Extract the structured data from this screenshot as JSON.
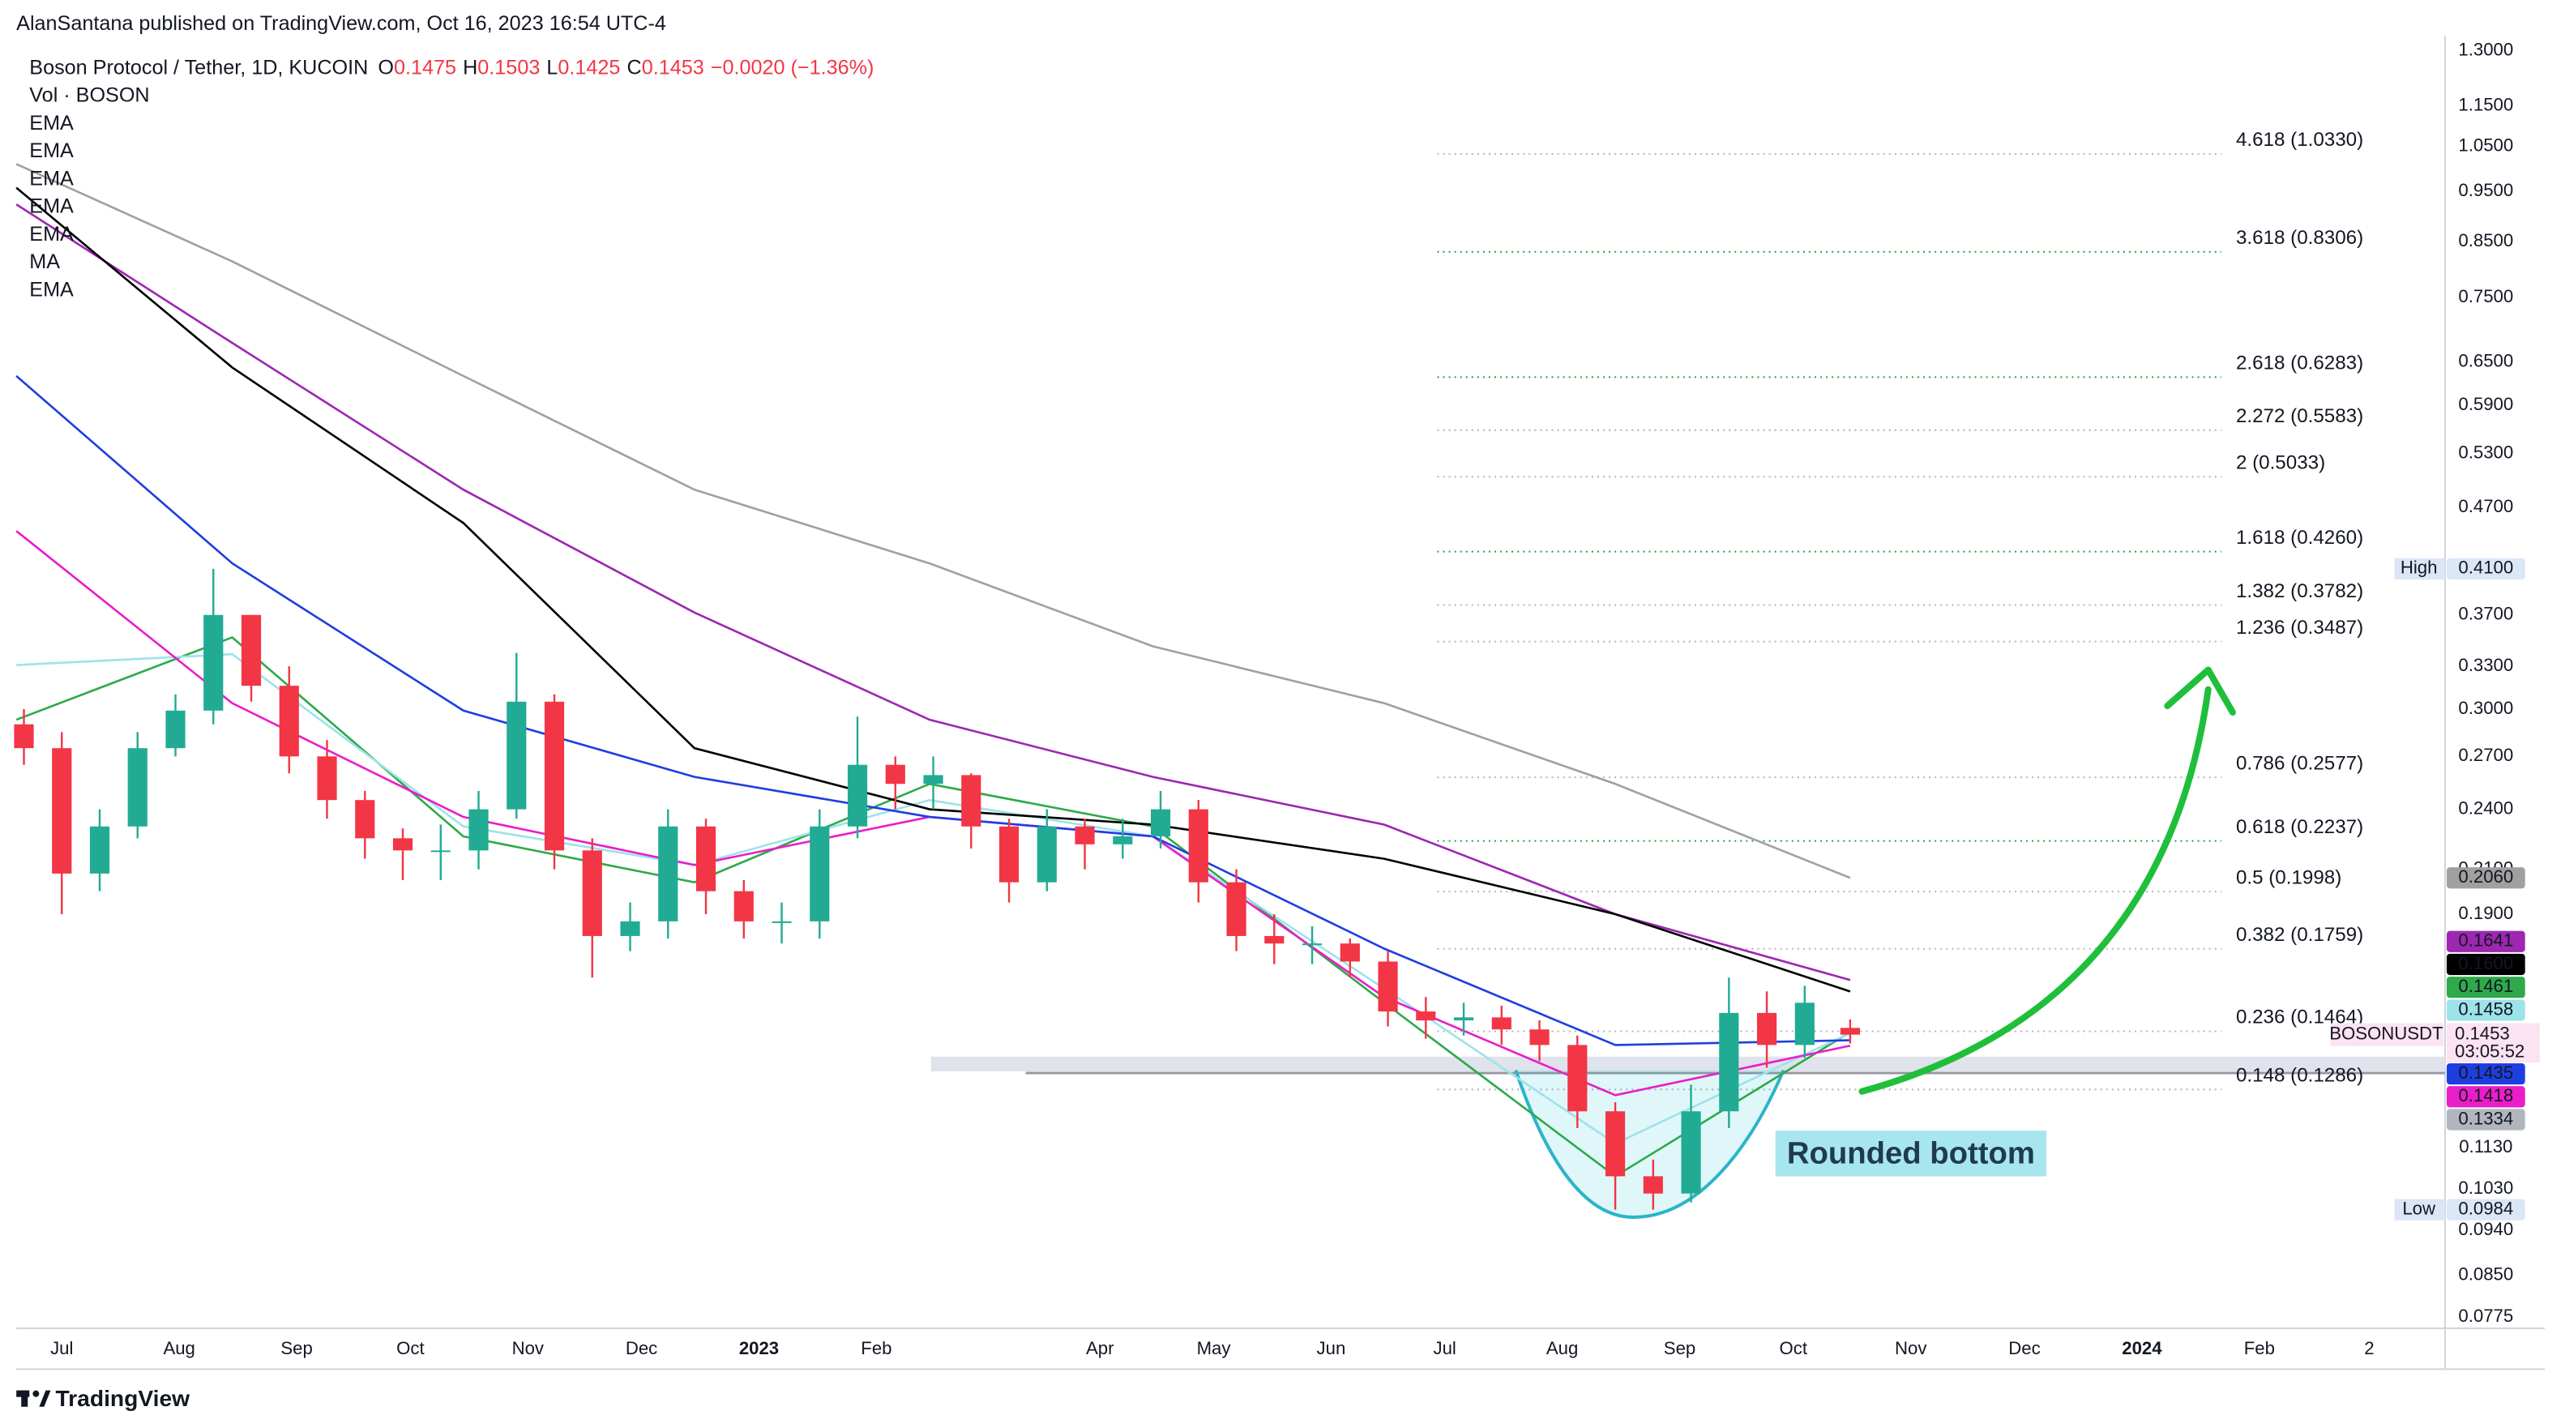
{
  "header": {
    "publisher": "AlanSantana published on TradingView.com, Oct 16, 2023 16:54 UTC-4"
  },
  "chart_data": {
    "type": "candlestick",
    "symbol": "Boson Protocol / Tether, 1D, KUCOIN",
    "ohlc": [
      {
        "key": "O",
        "value": "0.1475"
      },
      {
        "key": "H",
        "value": "0.1503"
      },
      {
        "key": "L",
        "value": "0.1425"
      },
      {
        "key": "C",
        "value": "0.1453"
      }
    ],
    "change": "−0.0020 (−1.36%)",
    "volume_label": "Vol · BOSON",
    "up_color": "#22ab94",
    "down_color": "#f23645",
    "log_scale": true,
    "ylim": [
      0.0775,
      1.3
    ],
    "yticks": [
      {
        "value": 1.3,
        "label": "1.3000"
      },
      {
        "value": 1.15,
        "label": "1.1500"
      },
      {
        "value": 1.05,
        "label": "1.0500"
      },
      {
        "value": 0.95,
        "label": "0.9500"
      },
      {
        "value": 0.85,
        "label": "0.8500"
      },
      {
        "value": 0.75,
        "label": "0.7500"
      },
      {
        "value": 0.65,
        "label": "0.6500"
      },
      {
        "value": 0.59,
        "label": "0.5900"
      },
      {
        "value": 0.53,
        "label": "0.5300"
      },
      {
        "value": 0.47,
        "label": "0.4700"
      },
      {
        "value": 0.37,
        "label": "0.3700"
      },
      {
        "value": 0.33,
        "label": "0.3300"
      },
      {
        "value": 0.3,
        "label": "0.3000"
      },
      {
        "value": 0.27,
        "label": "0.2700"
      },
      {
        "value": 0.24,
        "label": "0.2400"
      },
      {
        "value": 0.21,
        "label": "0.2100"
      },
      {
        "value": 0.19,
        "label": "0.1900"
      },
      {
        "value": 0.113,
        "label": "0.1130"
      },
      {
        "value": 0.103,
        "label": "0.1030"
      },
      {
        "value": 0.094,
        "label": "0.0940"
      },
      {
        "value": 0.085,
        "label": "0.0850"
      },
      {
        "value": 0.0775,
        "label": "0.0775"
      }
    ],
    "xlim": [
      "2022-06-19",
      "2024-03-21"
    ],
    "xticks": [
      {
        "value": "2022-07-01",
        "label": "Jul"
      },
      {
        "value": "2022-08-01",
        "label": "Aug"
      },
      {
        "value": "2022-09-01",
        "label": "Sep"
      },
      {
        "value": "2022-10-01",
        "label": "Oct"
      },
      {
        "value": "2022-11-01",
        "label": "Nov"
      },
      {
        "value": "2022-12-01",
        "label": "Dec"
      },
      {
        "value": "2023-01-01",
        "label": "2023"
      },
      {
        "value": "2023-02-01",
        "label": "Feb"
      },
      {
        "value": "2023-04-01",
        "label": "Apr"
      },
      {
        "value": "2023-05-01",
        "label": "May"
      },
      {
        "value": "2023-06-01",
        "label": "Jun"
      },
      {
        "value": "2023-07-01",
        "label": "Jul"
      },
      {
        "value": "2023-08-01",
        "label": "Aug"
      },
      {
        "value": "2023-09-01",
        "label": "Sep"
      },
      {
        "value": "2023-10-01",
        "label": "Oct"
      },
      {
        "value": "2023-11-01",
        "label": "Nov"
      },
      {
        "value": "2023-12-01",
        "label": "Dec"
      },
      {
        "value": "2024-01-01",
        "label": "2024"
      },
      {
        "value": "2024-02-01",
        "label": "Feb"
      },
      {
        "value": "2024-03-01",
        "label": "2"
      }
    ],
    "x": [
      "2022-06-21",
      "2022-07-01",
      "2022-07-11",
      "2022-07-21",
      "2022-07-31",
      "2022-08-10",
      "2022-08-20",
      "2022-08-30",
      "2022-09-09",
      "2022-09-19",
      "2022-09-29",
      "2022-10-09",
      "2022-10-19",
      "2022-10-29",
      "2022-11-08",
      "2022-11-18",
      "2022-11-28",
      "2022-12-08",
      "2022-12-18",
      "2022-12-28",
      "2023-01-07",
      "2023-01-17",
      "2023-01-27",
      "2023-02-06",
      "2023-02-16",
      "2023-02-26",
      "2023-03-08",
      "2023-03-18",
      "2023-03-28",
      "2023-04-07",
      "2023-04-17",
      "2023-04-27",
      "2023-05-07",
      "2023-05-17",
      "2023-05-27",
      "2023-06-06",
      "2023-06-16",
      "2023-06-26",
      "2023-07-06",
      "2023-07-16",
      "2023-07-26",
      "2023-08-05",
      "2023-08-15",
      "2023-08-25",
      "2023-09-04",
      "2023-09-14",
      "2023-09-24",
      "2023-10-04",
      "2023-10-16"
    ],
    "open": [
      0.29,
      0.275,
      0.208,
      0.231,
      0.275,
      0.299,
      0.37,
      0.316,
      0.27,
      0.245,
      0.225,
      0.219,
      0.219,
      0.24,
      0.305,
      0.219,
      0.181,
      0.187,
      0.231,
      0.2,
      0.187,
      0.187,
      0.231,
      0.265,
      0.254,
      0.259,
      0.231,
      0.204,
      0.231,
      0.222,
      0.226,
      0.24,
      0.204,
      0.181,
      0.178,
      0.178,
      0.171,
      0.153,
      0.15,
      0.151,
      0.147,
      0.142,
      0.1225,
      0.106,
      0.102,
      0.1225,
      0.1525,
      0.142,
      0.1475
    ],
    "high": [
      0.3,
      0.285,
      0.24,
      0.285,
      0.31,
      0.41,
      0.37,
      0.33,
      0.28,
      0.25,
      0.23,
      0.232,
      0.25,
      0.34,
      0.31,
      0.225,
      0.195,
      0.24,
      0.235,
      0.205,
      0.195,
      0.24,
      0.295,
      0.27,
      0.27,
      0.26,
      0.235,
      0.24,
      0.235,
      0.235,
      0.25,
      0.245,
      0.21,
      0.19,
      0.185,
      0.18,
      0.175,
      0.158,
      0.156,
      0.155,
      0.15,
      0.145,
      0.125,
      0.11,
      0.13,
      0.165,
      0.16,
      0.162,
      0.1503
    ],
    "low": [
      0.265,
      0.19,
      0.2,
      0.225,
      0.27,
      0.29,
      0.305,
      0.26,
      0.235,
      0.215,
      0.205,
      0.205,
      0.21,
      0.235,
      0.21,
      0.165,
      0.175,
      0.18,
      0.19,
      0.18,
      0.178,
      0.18,
      0.225,
      0.24,
      0.24,
      0.22,
      0.195,
      0.2,
      0.21,
      0.215,
      0.22,
      0.195,
      0.175,
      0.17,
      0.17,
      0.165,
      0.148,
      0.144,
      0.145,
      0.142,
      0.137,
      0.118,
      0.0984,
      0.0984,
      0.1,
      0.118,
      0.135,
      0.138,
      0.1425
    ],
    "close": [
      0.275,
      0.208,
      0.231,
      0.275,
      0.299,
      0.37,
      0.316,
      0.27,
      0.245,
      0.225,
      0.219,
      0.219,
      0.24,
      0.305,
      0.219,
      0.181,
      0.187,
      0.231,
      0.2,
      0.187,
      0.187,
      0.231,
      0.265,
      0.254,
      0.259,
      0.231,
      0.204,
      0.231,
      0.222,
      0.226,
      0.24,
      0.204,
      0.181,
      0.178,
      0.178,
      0.171,
      0.153,
      0.15,
      0.151,
      0.147,
      0.142,
      0.1225,
      0.106,
      0.102,
      0.1225,
      0.1525,
      0.142,
      0.156,
      0.1453
    ],
    "indicator_x": [
      "2022-06-19",
      "2022-08-15",
      "2022-10-15",
      "2022-12-15",
      "2023-02-15",
      "2023-04-15",
      "2023-06-15",
      "2023-08-15",
      "2023-10-16"
    ],
    "indicators": [
      {
        "name": "EMA",
        "color": "#2eaa4a",
        "values": [
          0.293,
          0.352,
          0.226,
          0.204,
          0.254,
          0.231,
          0.156,
          0.106,
          0.1461
        ],
        "last_label": "0.1461"
      },
      {
        "name": "EMA",
        "color": "#9de3ea",
        "values": [
          0.331,
          0.339,
          0.231,
          0.212,
          0.245,
          0.226,
          0.161,
          0.114,
          0.1458
        ],
        "last_label": "0.1458"
      },
      {
        "name": "EMA",
        "color": "#e91ec8",
        "values": [
          0.446,
          0.304,
          0.236,
          0.212,
          0.236,
          0.226,
          0.158,
          0.127,
          0.1418
        ],
        "last_label": "0.1418"
      },
      {
        "name": "EMA",
        "color": "#1e3fe0",
        "values": [
          0.63,
          0.415,
          0.299,
          0.258,
          0.236,
          0.226,
          0.176,
          0.142,
          0.1435
        ],
        "last_label": "0.1435"
      },
      {
        "name": "EMA",
        "color": "#9c27b0",
        "values": [
          0.923,
          0.678,
          0.489,
          0.372,
          0.293,
          0.258,
          0.232,
          0.19,
          0.1641
        ],
        "last_label": "0.1641"
      },
      {
        "name": "MA",
        "color": "#000000",
        "values": [
          0.958,
          0.642,
          0.454,
          0.275,
          0.24,
          0.232,
          0.215,
          0.19,
          0.16
        ],
        "last_label": "0.1600"
      },
      {
        "name": "EMA",
        "color": "#a0a0a0",
        "values": [
          1.01,
          0.813,
          0.63,
          0.489,
          0.415,
          0.345,
          0.304,
          0.254,
          0.206
        ],
        "last_label": "0.2060"
      }
    ],
    "symbol_label": {
      "name": "BOSONUSDT",
      "value": 0.1453,
      "label": "0.1453",
      "countdown": "03:05:52"
    },
    "zone": {
      "value": 0.1334,
      "label": "0.1334"
    },
    "extremes": [
      {
        "text": "High",
        "value": 0.41,
        "label": "0.4100"
      },
      {
        "text": "Low",
        "value": 0.0984,
        "label": "0.0984"
      }
    ],
    "fib_levels": [
      {
        "value": 1.033,
        "label": "4.618 (1.0330)",
        "color": "#b2b5be"
      },
      {
        "value": 0.8306,
        "label": "3.618 (0.8306)",
        "color": "#2e9e3e"
      },
      {
        "value": 0.6283,
        "label": "2.618 (0.6283)",
        "color": "#2e9e3e"
      },
      {
        "value": 0.5583,
        "label": "2.272 (0.5583)",
        "color": "#b2b5be"
      },
      {
        "value": 0.5033,
        "label": "2 (0.5033)",
        "color": "#b2b5be"
      },
      {
        "value": 0.426,
        "label": "1.618 (0.4260)",
        "color": "#2e9e3e"
      },
      {
        "value": 0.3782,
        "label": "1.382 (0.3782)",
        "color": "#b2b5be"
      },
      {
        "value": 0.3487,
        "label": "1.236 (0.3487)",
        "color": "#b2b5be"
      },
      {
        "value": 0.2577,
        "label": "0.786 (0.2577)",
        "color": "#b2b5be"
      },
      {
        "value": 0.2237,
        "label": "0.618 (0.2237)",
        "color": "#2e9e3e"
      },
      {
        "value": 0.1998,
        "label": "0.5 (0.1998)",
        "color": "#b2b5be"
      },
      {
        "value": 0.1759,
        "label": "0.382 (0.1759)",
        "color": "#b2b5be"
      },
      {
        "value": 0.1464,
        "label": "0.236 (0.1464)",
        "color": "#b2b5be"
      },
      {
        "value": 0.1286,
        "label": "0.148 (0.1286)",
        "color": "#b2b5be"
      }
    ],
    "annotation": "Rounded bottom"
  },
  "footer": {
    "brand": "TradingView"
  }
}
